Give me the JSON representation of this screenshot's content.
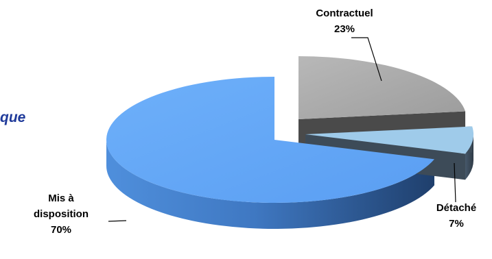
{
  "page_fragment": "que",
  "chart_data": {
    "type": "pie",
    "style": "3d-exploded",
    "title": "",
    "categories": [
      "Contractuel",
      "Détaché",
      "Mis à disposition"
    ],
    "values": [
      23,
      7,
      70
    ],
    "value_labels": [
      "23%",
      "7%",
      "70%"
    ],
    "colors": [
      "#a6a6a6",
      "#9fcbea",
      "#5ea4f6"
    ],
    "side_colors": [
      "#4a4a4a",
      "#3d4b58",
      "#2c5a90"
    ],
    "legend": "none",
    "data_labels": "outside-with-leader-lines"
  }
}
